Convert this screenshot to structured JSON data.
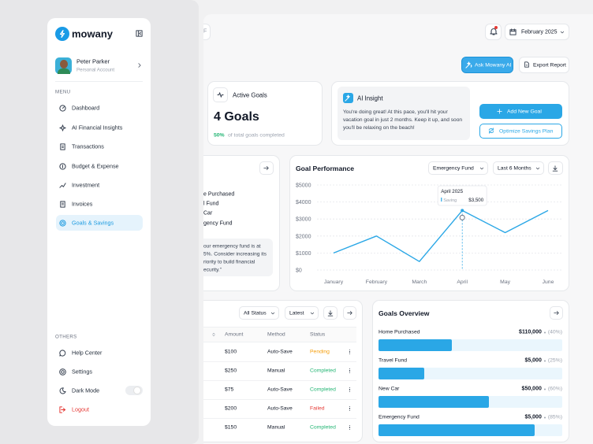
{
  "sidebar": {
    "brand": "mowany",
    "user": {
      "name": "Peter Parker",
      "role": "Personal Account"
    },
    "menu_label": "MENU",
    "menu": [
      "Dashboard",
      "AI Financial Insights",
      "Transactions",
      "Budget & Expense",
      "Investment",
      "Invoices",
      "Goals & Savings"
    ],
    "others_label": "OTHERS",
    "others": [
      "Help Center",
      "Settings",
      "Dark Mode",
      "Logout"
    ]
  },
  "topbar": {
    "search_fragment": "F",
    "date": "February 2025",
    "actions": [
      "Ask Mowany AI",
      "Export Report"
    ]
  },
  "active_goals": {
    "title": "Active Goals",
    "count": "4 Goals",
    "percent": "50%",
    "caption": "of total goals completed"
  },
  "ai_insight": {
    "title": "AI Insight",
    "message": "You're doing great! At this pace, you'll hit your vacation goal in just 2 months. Keep it up, and soon you'll be relaxing on the beach!",
    "buttons": [
      "Add New Goal",
      "Optimize Savings Plan"
    ]
  },
  "goal_list_partial": {
    "items": [
      "e Purchased",
      "l Fund",
      "Car",
      "gency Fund"
    ],
    "note": [
      "our emergency fund is at",
      "5%. Consider increasing its",
      "riority to build financial",
      "ecurity.”"
    ]
  },
  "goal_performance": {
    "type": "line",
    "title": "Goal Performance",
    "filters": [
      "Emergency Fund",
      "Last 6 Months"
    ],
    "categories": [
      "January",
      "February",
      "March",
      "April",
      "May",
      "June"
    ],
    "values": [
      1000,
      2000,
      500,
      3500,
      2200,
      3500
    ],
    "color": "#2aa7e6",
    "grid": true,
    "ylim": [
      0,
      5000
    ],
    "yticks": [
      {
        "value": 0,
        "label": "$0"
      },
      {
        "value": 1000,
        "label": "$1000"
      },
      {
        "value": 2000,
        "label": "$2000"
      },
      {
        "value": 3000,
        "label": "$3000"
      },
      {
        "value": 4000,
        "label": "$4000"
      },
      {
        "value": 5000,
        "label": "$5000"
      }
    ],
    "tooltip": {
      "title": "April 2025",
      "series": "Saving",
      "value": "$3,500"
    }
  },
  "transactions": {
    "filters": [
      "All Status",
      "Latest"
    ],
    "columns": [
      "Amount",
      "Method",
      "Status"
    ],
    "rows": [
      {
        "amount": "$100",
        "method": "Auto-Save",
        "status": "Pending",
        "status_color": "#f59e0b"
      },
      {
        "amount": "$250",
        "method": "Manual",
        "status": "Completed",
        "status_color": "#22b573"
      },
      {
        "amount": "$75",
        "method": "Auto-Save",
        "status": "Completed",
        "status_color": "#22b573"
      },
      {
        "amount": "$200",
        "method": "Auto-Save",
        "status": "Failed",
        "status_color": "#e53935"
      },
      {
        "amount": "$150",
        "method": "Manual",
        "status": "Completed",
        "status_color": "#22b573"
      }
    ]
  },
  "goals_overview": {
    "title": "Goals Overview",
    "color": "#2aa7e6",
    "goals": [
      {
        "name": "Home Purchased",
        "amount": "$110,000",
        "progress": {
          "value": 40,
          "label": "(40%)"
        }
      },
      {
        "name": "Travel Fund",
        "amount": "$5,000",
        "progress": {
          "value": 25,
          "label": "(25%)"
        }
      },
      {
        "name": "New Car",
        "amount": "$50,000",
        "progress": {
          "value": 60,
          "label": "(60%)"
        }
      },
      {
        "name": "Emergency Fund",
        "amount": "$5,000",
        "progress": {
          "value": 85,
          "label": "(85%)"
        }
      }
    ]
  }
}
